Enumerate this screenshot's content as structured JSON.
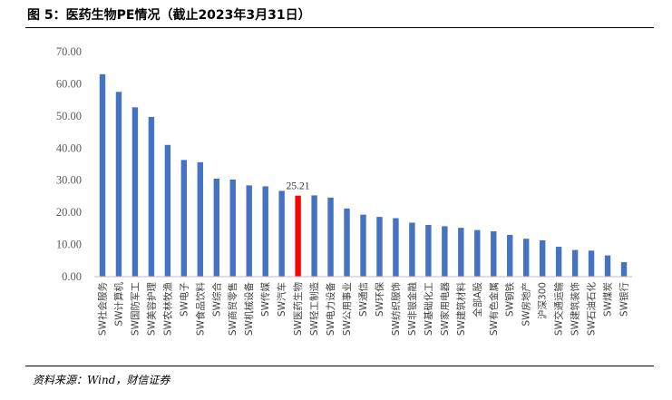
{
  "figure": {
    "title": "图 5：医药生物PE情况（截止2023年3月31日）",
    "source": "资料来源：Wind，财信证券"
  },
  "colors": {
    "bar": "#4472C4",
    "highlight": "#FF0000",
    "axis": "#BFBFBF"
  },
  "chart_data": {
    "type": "bar",
    "title": "",
    "xlabel": "",
    "ylabel": "",
    "ylim": [
      0,
      70
    ],
    "yticks": [
      "0.00",
      "10.00",
      "20.00",
      "30.00",
      "40.00",
      "50.00",
      "60.00",
      "70.00"
    ],
    "grid": false,
    "legend": "none",
    "categories": [
      "SW社会服务",
      "SW计算机",
      "SW国防军工",
      "SW美容护理",
      "SW农林牧渔",
      "SW电子",
      "SW食品饮料",
      "SW综合",
      "SW商贸零售",
      "SW机械设备",
      "SW传媒",
      "SW汽车",
      "SW医药生物",
      "SW轻工制造",
      "SW电力设备",
      "SW公用事业",
      "SW通信",
      "SW环保",
      "SW纺织服饰",
      "SW非银金融",
      "SW基础化工",
      "SW家用电器",
      "SW建筑材料",
      "全部A股",
      "SW有色金属",
      "SW钢铁",
      "SW房地产",
      "沪深300",
      "SW交通运输",
      "SW建筑装饰",
      "SW石油石化",
      "SW煤炭",
      "SW银行"
    ],
    "values": [
      63.0,
      57.5,
      52.7,
      49.7,
      41.0,
      36.3,
      35.6,
      30.5,
      30.2,
      28.4,
      28.1,
      26.7,
      25.21,
      25.3,
      24.6,
      21.2,
      19.3,
      18.6,
      18.2,
      16.8,
      16.1,
      15.7,
      15.2,
      14.5,
      14.1,
      13.0,
      11.8,
      11.3,
      9.3,
      8.3,
      8.1,
      6.6,
      4.5
    ],
    "highlight_index": 12,
    "data_labels": [
      {
        "index": 12,
        "text": "25.21"
      }
    ]
  }
}
